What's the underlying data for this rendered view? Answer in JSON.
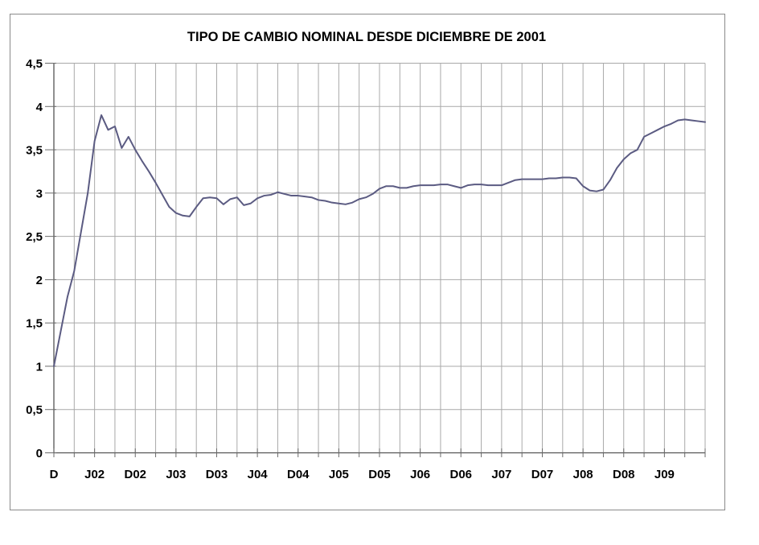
{
  "chart_data": {
    "type": "line",
    "title": "TIPO DE CAMBIO NOMINAL DESDE DICIEMBRE DE 2001",
    "axes": {
      "y_min": 0,
      "y_max": 4.5,
      "y_step": 0.5,
      "y_tick_labels": [
        "0",
        "0,5",
        "1",
        "1,5",
        "2",
        "2,5",
        "3",
        "3,5",
        "4",
        "4,5"
      ],
      "x_tick_labels": [
        "D",
        "J02",
        "D02",
        "J03",
        "D03",
        "J04",
        "D04",
        "J05",
        "D05",
        "J06",
        "D06",
        "J07",
        "D07",
        "J08",
        "D08",
        "J09"
      ],
      "x_total_months": 96,
      "x_label_step_months": 6,
      "x_grid_step_months": 3,
      "grid": true
    },
    "series": [
      {
        "start": "diciembre 2001",
        "frequency": "monthly",
        "color": "#5b5b82",
        "values": [
          1.0,
          1.4,
          1.8,
          2.1,
          2.55,
          3.0,
          3.6,
          3.9,
          3.73,
          3.77,
          3.52,
          3.65,
          3.5,
          3.37,
          3.25,
          3.12,
          2.98,
          2.84,
          2.77,
          2.74,
          2.73,
          2.84,
          2.94,
          2.95,
          2.94,
          2.87,
          2.93,
          2.95,
          2.86,
          2.88,
          2.94,
          2.97,
          2.98,
          3.01,
          2.99,
          2.97,
          2.97,
          2.96,
          2.95,
          2.92,
          2.91,
          2.89,
          2.88,
          2.87,
          2.89,
          2.93,
          2.95,
          2.99,
          3.05,
          3.08,
          3.08,
          3.06,
          3.06,
          3.08,
          3.09,
          3.09,
          3.09,
          3.1,
          3.1,
          3.08,
          3.06,
          3.09,
          3.1,
          3.1,
          3.09,
          3.09,
          3.09,
          3.12,
          3.15,
          3.16,
          3.16,
          3.16,
          3.16,
          3.17,
          3.17,
          3.18,
          3.18,
          3.17,
          3.08,
          3.03,
          3.02,
          3.04,
          3.15,
          3.29,
          3.39,
          3.46,
          3.5,
          3.65,
          3.69,
          3.73,
          3.77,
          3.8,
          3.84,
          3.85,
          3.84,
          3.83,
          3.82
        ]
      }
    ],
    "colors": {
      "background": "#ffffff",
      "border": "#8a8a8a",
      "gridline": "#a9a9a9",
      "axis": "#555555",
      "tick": "#6b6b6b",
      "text": "#000000",
      "line": "#5b5b82"
    }
  }
}
